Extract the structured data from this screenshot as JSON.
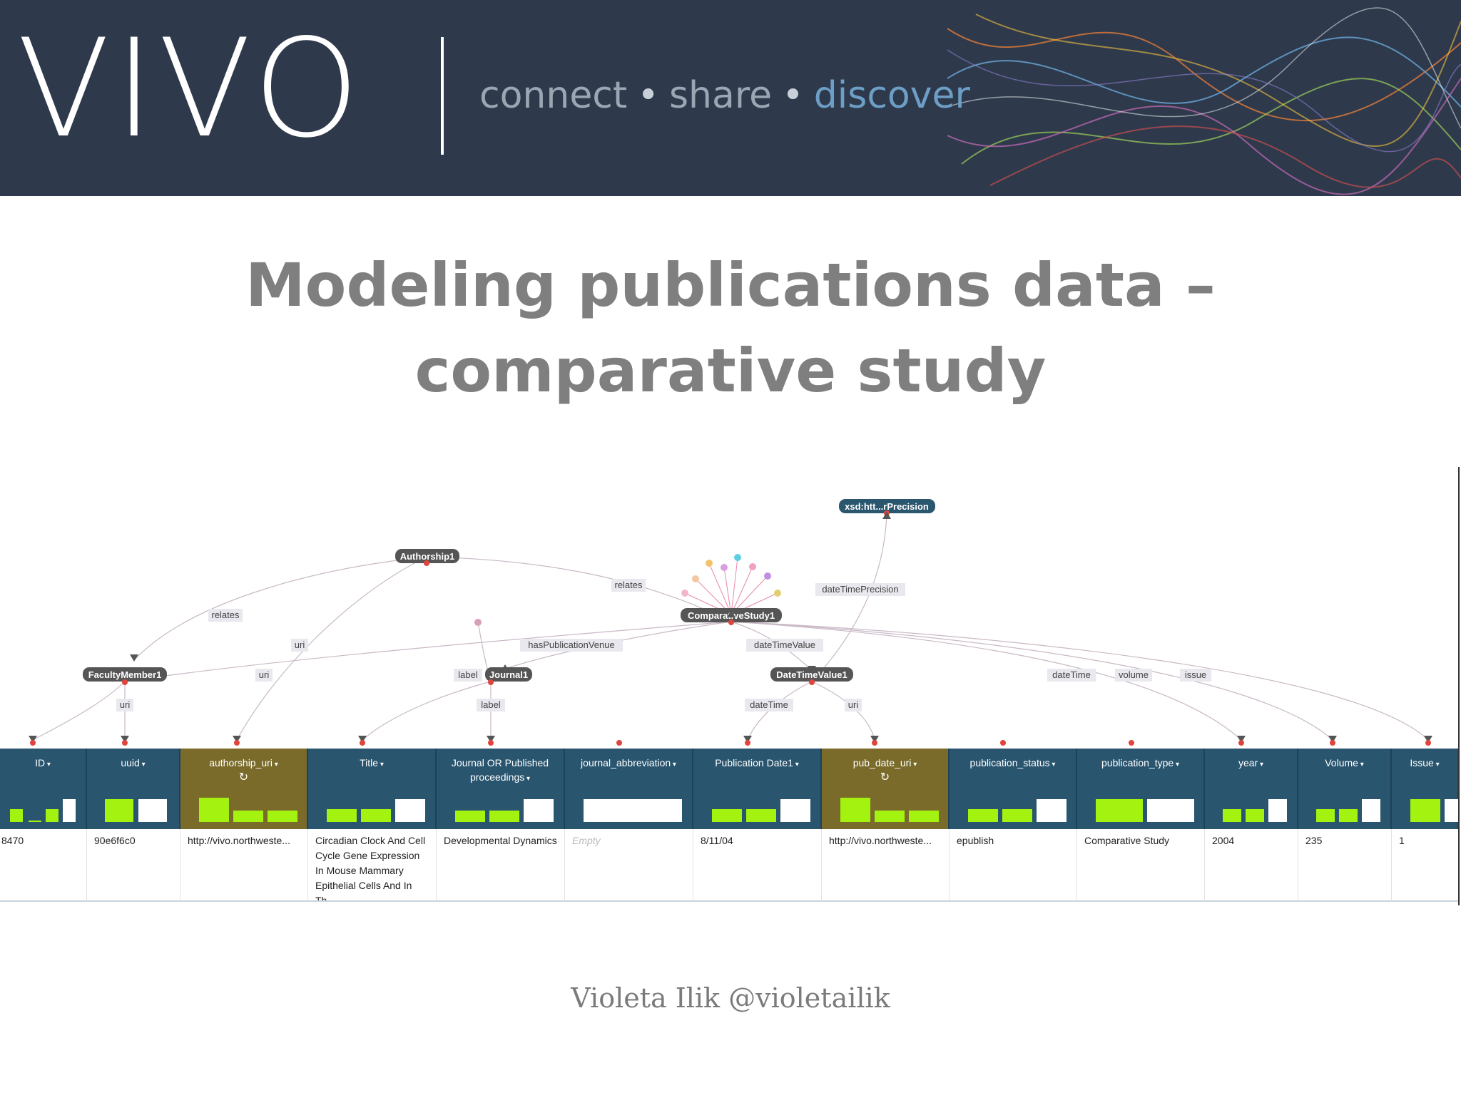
{
  "banner": {
    "logo": "VIVO",
    "tagline": {
      "connect": "connect",
      "share": "share",
      "discover": "discover",
      "separator": "•"
    }
  },
  "slide": {
    "title": "Modeling publications data – comparative study",
    "author": "Violeta Ilik @violetailik"
  },
  "graph": {
    "nodes": {
      "xsd": "xsd:htt...rPrecision",
      "authorship": "Authorship1",
      "comparative": "ComparativeStudy1",
      "faculty": "FacultyMember1",
      "journal": "Journal1",
      "datetimevalue": "DateTimeValue1"
    },
    "edges": {
      "relates1": "relates",
      "relates2": "relates",
      "uri_auth": "uri",
      "uri_fac": "uri",
      "uri_fac2": "uri",
      "hasPublicationVenue": "hasPublicationVenue",
      "label1": "label",
      "label2": "label",
      "dateTimeValue": "dateTimeValue",
      "dateTimePrecision": "dateTimePrecision",
      "dateTime1": "dateTime",
      "dateTime2": "dateTime",
      "uri_dt": "uri",
      "volume": "volume",
      "issue": "issue"
    }
  },
  "table": {
    "columns": [
      {
        "name": "ID",
        "value": "8470"
      },
      {
        "name": "uuid",
        "value": "90e6f6c0"
      },
      {
        "name": "authorship_uri",
        "value": "http://vivo.northweste...",
        "key": true
      },
      {
        "name": "Title",
        "value": "Circadian Clock And Cell Cycle Gene Expression In Mouse Mammary Epithelial Cells And In Th..."
      },
      {
        "name": "Journal OR Published proceedings",
        "value": "Developmental Dynamics"
      },
      {
        "name": "journal_abbreviation",
        "value": "Empty",
        "empty": true
      },
      {
        "name": "Publication Date1",
        "value": "8/11/04"
      },
      {
        "name": "pub_date_uri",
        "value": "http://vivo.northweste...",
        "key": true
      },
      {
        "name": "publication_status",
        "value": "epublish"
      },
      {
        "name": "publication_type",
        "value": "Comparative Study"
      },
      {
        "name": "year",
        "value": "2004"
      },
      {
        "name": "Volume",
        "value": "235"
      },
      {
        "name": "Issue",
        "value": "1"
      }
    ],
    "refresh_icon": "↻"
  },
  "colors": {
    "banner_bg": "#2e3a4c",
    "header_bg": "#29556f",
    "key_header_bg": "#7a6b2a",
    "histogram_green": "#a4f20f",
    "title_gray": "#7f7f80"
  }
}
